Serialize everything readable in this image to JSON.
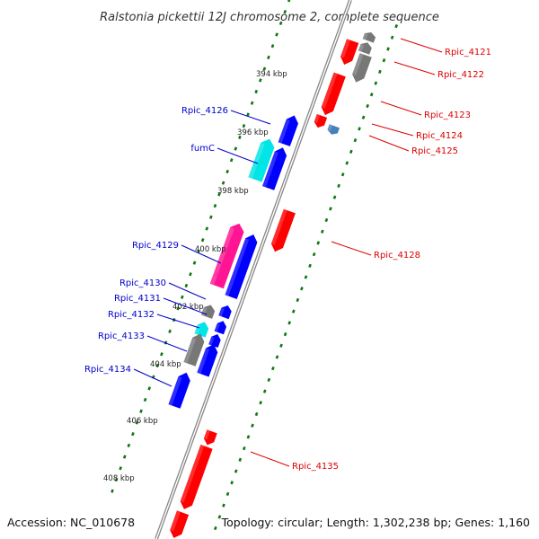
{
  "title": "Ralstonia pickettii 12J chromosome 2, complete sequence",
  "footer": {
    "accession": "Accession: NC_010678",
    "stats": "Topology: circular; Length: 1,302,238 bp; Genes: 1,160"
  },
  "colors": {
    "backbone": "#888888",
    "forward_label": "#0000cc",
    "reverse_label": "#dd0000",
    "tick": "#117711",
    "red_gene": "#ff0000",
    "blue_gene": "#0000ff",
    "gray_gene": "#777777",
    "cyan_gene": "#00e5e5",
    "pink_gene": "#ff1493",
    "steel_gene": "#4682b4"
  },
  "scale_labels": [
    "394 kbp",
    "396 kbp",
    "398 kbp",
    "400 kbp",
    "402 kbp",
    "404 kbp",
    "406 kbp",
    "408 kbp"
  ],
  "left_labels": [
    "Rpic_4126",
    "fumC",
    "Rpic_4129",
    "Rpic_4130",
    "Rpic_4131",
    "Rpic_4132",
    "Rpic_4133",
    "Rpic_4134"
  ],
  "right_labels": [
    "Rpic_4121",
    "Rpic_4122",
    "Rpic_4123",
    "Rpic_4124",
    "Rpic_4125",
    "Rpic_4128",
    "Rpic_4135"
  ]
}
